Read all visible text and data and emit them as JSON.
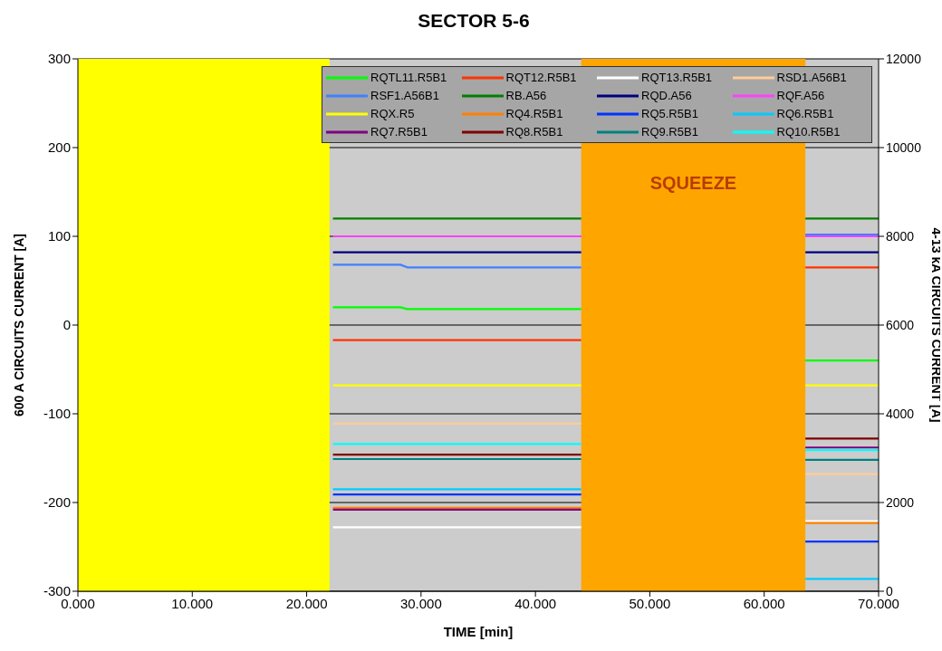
{
  "chart_data": {
    "type": "line",
    "title": "SECTOR 5-6",
    "xlabel": "TIME [min]",
    "ylabel": "600 A CIRCUITS CURRENT [A]",
    "y2label": "4-13 kA CIRCUITS CURRENT [A]",
    "x": [
      22.3,
      28.2,
      28.8,
      44,
      54,
      63.6,
      70
    ],
    "series": [
      {
        "name": "RQTL11.R5B1",
        "color": "#00ff00",
        "values": [
          20,
          20,
          18,
          18,
          null,
          -40,
          -40
        ]
      },
      {
        "name": "RQT12.R5B1",
        "color": "#ff3300",
        "values": [
          -17,
          -17,
          -17,
          -17,
          null,
          65,
          65
        ]
      },
      {
        "name": "RQT13.R5B1",
        "color": "#ffffff",
        "values": [
          -228,
          -228,
          -228,
          -228,
          null,
          -221,
          -221
        ]
      },
      {
        "name": "RSD1.A56B1",
        "color": "#ffcc99",
        "values": [
          -111,
          -111,
          -111,
          -111,
          null,
          -168,
          -168
        ]
      },
      {
        "name": "RSF1.A56B1",
        "color": "#4080ff",
        "values": [
          68,
          68,
          65,
          65,
          null,
          102,
          102
        ]
      },
      {
        "name": "RB.A56",
        "color": "#008000",
        "values": [
          120,
          120,
          120,
          120,
          null,
          120,
          120
        ]
      },
      {
        "name": "RQD.A56",
        "color": "#000080",
        "values": [
          82,
          82,
          82,
          82,
          null,
          82,
          82
        ]
      },
      {
        "name": "RQF.A56",
        "color": "#ff40ff",
        "values": [
          100,
          100,
          100,
          100,
          null,
          100,
          100
        ]
      },
      {
        "name": "RQX.R5",
        "color": "#ffff00",
        "values": [
          -68,
          -68,
          -68,
          -68,
          null,
          -68,
          -68
        ]
      },
      {
        "name": "RQ4.R5B1",
        "color": "#ff8000",
        "values": [
          -206,
          -206,
          -206,
          -206,
          null,
          -223,
          -223
        ]
      },
      {
        "name": "RQ5.R5B1",
        "color": "#0033ff",
        "values": [
          -191,
          -191,
          -191,
          -191,
          null,
          -244,
          -244
        ]
      },
      {
        "name": "RQ6.R5B1",
        "color": "#00ccff",
        "values": [
          -185,
          -185,
          -185,
          -185,
          null,
          -286,
          -286
        ]
      },
      {
        "name": "RQ7.R5B1",
        "color": "#800080",
        "values": [
          -208,
          -208,
          -208,
          -208,
          null,
          -138,
          -138
        ]
      },
      {
        "name": "RQ8.R5B1",
        "color": "#800000",
        "values": [
          -146,
          -146,
          -146,
          -146,
          null,
          -128,
          -128
        ]
      },
      {
        "name": "RQ9.R5B1",
        "color": "#008080",
        "values": [
          -151,
          -151,
          -151,
          -151,
          null,
          -152,
          -152
        ]
      },
      {
        "name": "RQ10.R5B1",
        "color": "#00ffff",
        "values": [
          -134,
          -134,
          -134,
          -134,
          null,
          -141,
          -141
        ]
      }
    ],
    "xlim": [
      0,
      70
    ],
    "xticks": [
      {
        "value": 0,
        "label": "0.000"
      },
      {
        "value": 10,
        "label": "10.000"
      },
      {
        "value": 20,
        "label": "20.000"
      },
      {
        "value": 30,
        "label": "30.000"
      },
      {
        "value": 40,
        "label": "40.000"
      },
      {
        "value": 50,
        "label": "50.000"
      },
      {
        "value": 60,
        "label": "60.000"
      },
      {
        "value": 70,
        "label": "70.000"
      }
    ],
    "ylim": [
      -300,
      300
    ],
    "yticks": [
      -300,
      -200,
      -100,
      0,
      100,
      200,
      300
    ],
    "y2lim": [
      0,
      12000
    ],
    "y2ticks": [
      0,
      2000,
      4000,
      6000,
      8000,
      10000,
      12000
    ],
    "bands": [
      {
        "axis": "x",
        "from": 0,
        "to": 22,
        "color": "#ffff00"
      },
      {
        "axis": "x",
        "from": 44,
        "to": 63.6,
        "label": "SQUEEZE",
        "color": "#ffa500"
      }
    ],
    "grid": "y",
    "legend": "top right",
    "marker": "none",
    "line_style": "solid"
  }
}
